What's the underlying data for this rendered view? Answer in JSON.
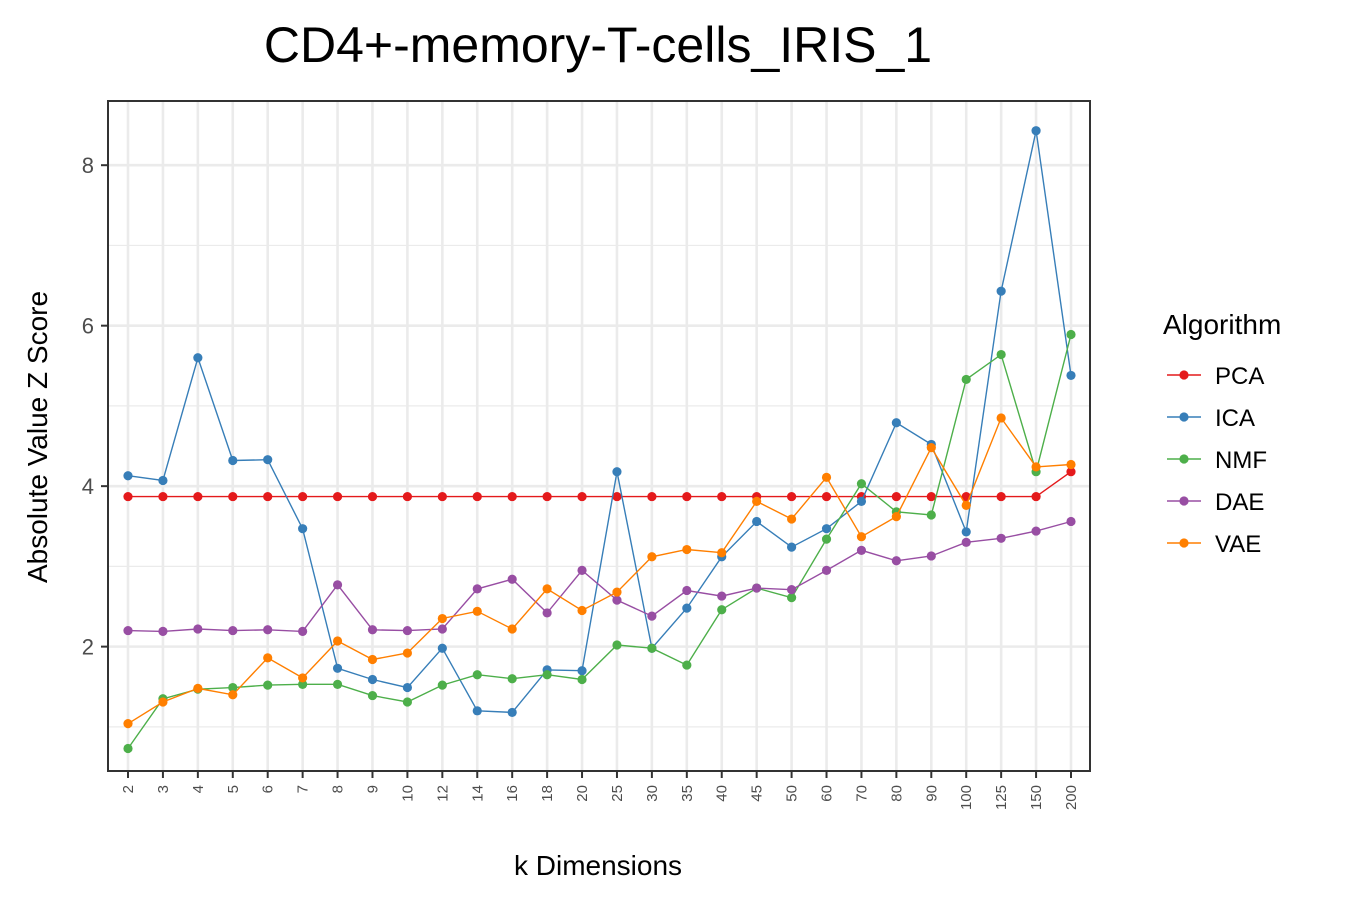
{
  "chart_data": {
    "type": "line",
    "title": "CD4+-memory-T-cells_IRIS_1",
    "xlabel": "k Dimensions",
    "ylabel": "Absolute Value Z Score",
    "ylim": [
      0.45,
      8.8
    ],
    "yticks": [
      2,
      4,
      6,
      8
    ],
    "grid": true,
    "legend_title": "Algorithm",
    "legend_position": "right",
    "categories": [
      "2",
      "3",
      "4",
      "5",
      "6",
      "7",
      "8",
      "9",
      "10",
      "12",
      "14",
      "16",
      "18",
      "20",
      "25",
      "30",
      "35",
      "40",
      "45",
      "50",
      "60",
      "70",
      "80",
      "90",
      "100",
      "125",
      "150",
      "200"
    ],
    "series": [
      {
        "name": "PCA",
        "color": "#e41a1c",
        "values": [
          3.87,
          3.87,
          3.87,
          3.87,
          3.87,
          3.87,
          3.87,
          3.87,
          3.87,
          3.87,
          3.87,
          3.87,
          3.87,
          3.87,
          3.87,
          3.87,
          3.87,
          3.87,
          3.87,
          3.87,
          3.87,
          3.87,
          3.87,
          3.87,
          3.87,
          3.87,
          3.87,
          4.18
        ]
      },
      {
        "name": "ICA",
        "color": "#377eb8",
        "values": [
          4.13,
          4.07,
          5.6,
          4.32,
          4.33,
          3.47,
          1.73,
          1.59,
          1.49,
          1.98,
          1.2,
          1.18,
          1.71,
          1.7,
          4.18,
          1.98,
          2.48,
          3.12,
          3.56,
          3.24,
          3.47,
          3.81,
          4.79,
          4.52,
          3.43,
          6.43,
          8.43,
          5.38
        ]
      },
      {
        "name": "NMF",
        "color": "#4daf4a",
        "values": [
          0.73,
          1.35,
          1.47,
          1.49,
          1.52,
          1.53,
          1.53,
          1.39,
          1.31,
          1.52,
          1.65,
          1.6,
          1.65,
          1.59,
          2.02,
          1.98,
          1.77,
          2.46,
          2.73,
          2.61,
          3.34,
          4.03,
          3.68,
          3.64,
          5.33,
          5.64,
          4.18,
          5.89
        ]
      },
      {
        "name": "DAE",
        "color": "#984ea3",
        "values": [
          2.2,
          2.19,
          2.22,
          2.2,
          2.21,
          2.19,
          2.77,
          2.21,
          2.2,
          2.22,
          2.72,
          2.84,
          2.42,
          2.95,
          2.58,
          2.38,
          2.7,
          2.63,
          2.73,
          2.71,
          2.95,
          3.2,
          3.07,
          3.13,
          3.3,
          3.35,
          3.44,
          3.56
        ]
      },
      {
        "name": "VAE",
        "color": "#ff7f00",
        "values": [
          1.04,
          1.31,
          1.48,
          1.4,
          1.86,
          1.61,
          2.07,
          1.84,
          1.92,
          2.35,
          2.44,
          2.22,
          2.72,
          2.45,
          2.68,
          3.12,
          3.21,
          3.17,
          3.81,
          3.59,
          4.11,
          3.37,
          3.62,
          4.48,
          3.76,
          4.85,
          4.24,
          4.27
        ]
      }
    ]
  }
}
